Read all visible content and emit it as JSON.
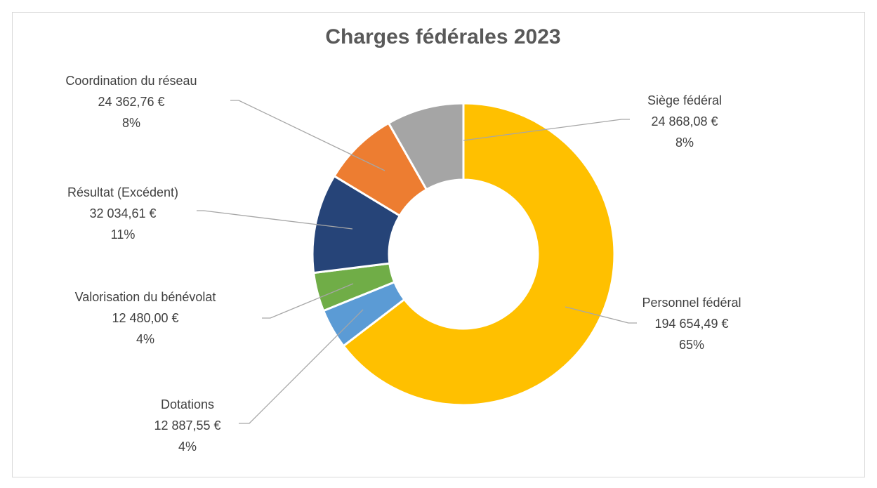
{
  "chart_data": {
    "type": "donut",
    "title": "Charges fédérales 2023",
    "categories": [
      "Personnel fédéral",
      "Dotations",
      "Valorisation du bénévolat",
      "Résultat (Excédent)",
      "Coordination du réseau",
      "Siège fédéral"
    ],
    "values": [
      194654.49,
      12887.55,
      12480.0,
      32034.61,
      24362.76,
      24868.08
    ],
    "value_labels": [
      "194 654,49 €",
      "12 887,55 €",
      "12 480,00 €",
      "32 034,61 €",
      "24 362,76 €",
      "24 868,08 €"
    ],
    "percents": [
      65,
      4,
      4,
      11,
      8,
      8
    ],
    "percent_labels": [
      "65%",
      "4%",
      "4%",
      "11%",
      "8%",
      "8%"
    ],
    "colors": [
      "#ffc000",
      "#5b9bd5",
      "#70ad47",
      "#264478",
      "#ed7d31",
      "#a5a5a5"
    ]
  }
}
